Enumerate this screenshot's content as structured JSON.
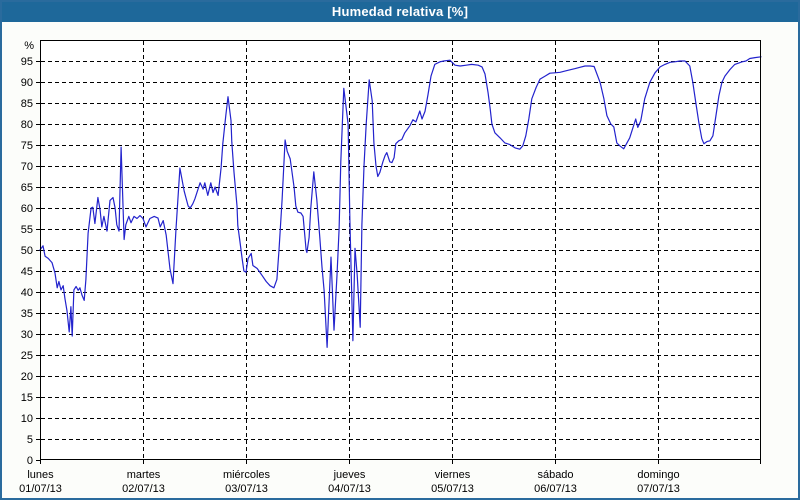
{
  "window": {
    "title": "Humedad relativa [%]"
  },
  "colors": {
    "title_bg": "#1e689a",
    "title_text": "#ffffff",
    "frame_border": "#2a6b9d",
    "page_bg": "#fcfdfa",
    "plot_bg": "#ffffff",
    "grid": "#000000",
    "axis": "#000000",
    "axis_text": "#000000",
    "line": "#2323cd"
  },
  "chart_data": {
    "type": "line",
    "title": "Humedad relativa [%]",
    "unit_label": "%",
    "ylabel": "",
    "xlabel": "",
    "ylim": [
      0,
      100
    ],
    "x_hours_range": [
      0,
      168
    ],
    "grid": "dashed",
    "legend": "none",
    "y_ticks": [
      0,
      5,
      10,
      15,
      20,
      25,
      30,
      35,
      40,
      45,
      50,
      55,
      60,
      65,
      70,
      75,
      80,
      85,
      90,
      95
    ],
    "x_days": [
      {
        "name": "lunes",
        "date": "01/07/13"
      },
      {
        "name": "martes",
        "date": "02/07/13"
      },
      {
        "name": "miércoles",
        "date": "03/07/13"
      },
      {
        "name": "jueves",
        "date": "04/07/13"
      },
      {
        "name": "viernes",
        "date": "05/07/13"
      },
      {
        "name": "sábado",
        "date": "06/07/13"
      },
      {
        "name": "domingo",
        "date": "07/07/13"
      }
    ],
    "series": [
      {
        "name": "Humedad relativa",
        "points": [
          [
            0,
            50
          ],
          [
            0.7,
            51
          ],
          [
            1.2,
            48.5
          ],
          [
            1.9,
            48
          ],
          [
            2.8,
            47
          ],
          [
            3.5,
            44.5
          ],
          [
            4,
            41
          ],
          [
            4.4,
            42.5
          ],
          [
            4.9,
            40.5
          ],
          [
            5.4,
            41.5
          ],
          [
            5.8,
            38.5
          ],
          [
            6.3,
            35.5
          ],
          [
            6.8,
            30.5
          ],
          [
            7.2,
            36.5
          ],
          [
            7.5,
            29.5
          ],
          [
            7.9,
            40.5
          ],
          [
            8.4,
            41.3
          ],
          [
            8.9,
            40.4
          ],
          [
            9.3,
            41
          ],
          [
            9.8,
            39.2
          ],
          [
            10.3,
            38
          ],
          [
            10.7,
            43
          ],
          [
            11.2,
            54
          ],
          [
            11.9,
            60
          ],
          [
            12.3,
            60.2
          ],
          [
            12.8,
            56.3
          ],
          [
            13.5,
            62.5
          ],
          [
            14,
            59.5
          ],
          [
            14.4,
            55.5
          ],
          [
            14.9,
            58
          ],
          [
            15.6,
            54.5
          ],
          [
            16.3,
            61.8
          ],
          [
            17,
            62.5
          ],
          [
            17.5,
            60
          ],
          [
            17.9,
            56
          ],
          [
            18.4,
            54.5
          ],
          [
            18.9,
            74.5
          ],
          [
            19.6,
            52.5
          ],
          [
            20,
            56
          ],
          [
            20.7,
            58
          ],
          [
            21.2,
            56.5
          ],
          [
            21.9,
            58
          ],
          [
            22.6,
            57.5
          ],
          [
            23.3,
            58.2
          ],
          [
            24,
            57.5
          ],
          [
            24.7,
            55.5
          ],
          [
            25.6,
            57.5
          ],
          [
            26.6,
            58
          ],
          [
            27.5,
            57.6
          ],
          [
            28,
            55.5
          ],
          [
            28.7,
            57
          ],
          [
            29.4,
            53.5
          ],
          [
            30.3,
            45.5
          ],
          [
            31,
            42
          ],
          [
            31.7,
            55
          ],
          [
            32.6,
            69.5
          ],
          [
            33.6,
            64
          ],
          [
            34.5,
            60.5
          ],
          [
            35,
            60
          ],
          [
            35.6,
            61
          ],
          [
            36.1,
            62.2
          ],
          [
            37.3,
            66
          ],
          [
            38,
            64.5
          ],
          [
            38.4,
            66
          ],
          [
            39.1,
            63
          ],
          [
            39.8,
            66
          ],
          [
            40.3,
            63.7
          ],
          [
            40.8,
            65
          ],
          [
            41.5,
            63
          ],
          [
            42.2,
            69.6
          ],
          [
            42.6,
            75.3
          ],
          [
            43.3,
            82
          ],
          [
            43.8,
            86.5
          ],
          [
            44.5,
            80.8
          ],
          [
            44.7,
            75.7
          ],
          [
            45.2,
            68.5
          ],
          [
            45.9,
            60.5
          ],
          [
            46.1,
            55.8
          ],
          [
            46.6,
            51.9
          ],
          [
            47.1,
            48
          ],
          [
            47.5,
            45
          ],
          [
            48,
            44.7
          ],
          [
            48.5,
            48
          ],
          [
            49.2,
            49.2
          ],
          [
            49.6,
            46.3
          ],
          [
            50.6,
            45.6
          ],
          [
            51.7,
            44
          ],
          [
            52.7,
            42.5
          ],
          [
            53.6,
            41.5
          ],
          [
            54.5,
            41
          ],
          [
            55.2,
            43
          ],
          [
            55.7,
            50
          ],
          [
            56.4,
            62
          ],
          [
            57.1,
            76.2
          ],
          [
            57.6,
            73.5
          ],
          [
            58.3,
            71.7
          ],
          [
            59.2,
            64.9
          ],
          [
            59.6,
            60.5
          ],
          [
            60.1,
            59
          ],
          [
            60.8,
            58.8
          ],
          [
            61.3,
            58
          ],
          [
            62,
            50
          ],
          [
            62.2,
            49.4
          ],
          [
            62.7,
            53
          ],
          [
            63.1,
            60
          ],
          [
            63.8,
            68.6
          ],
          [
            64.5,
            62
          ],
          [
            65.2,
            53
          ],
          [
            65.7,
            45.9
          ],
          [
            66.2,
            40.4
          ],
          [
            66.9,
            26.8
          ],
          [
            67.8,
            48.3
          ],
          [
            68.5,
            30.9
          ],
          [
            69.2,
            44
          ],
          [
            69.7,
            55
          ],
          [
            70.1,
            71
          ],
          [
            70.8,
            88.5
          ],
          [
            71.8,
            80
          ],
          [
            72.2,
            56.9
          ],
          [
            72.9,
            28.4
          ],
          [
            73.4,
            50.4
          ],
          [
            73.9,
            44
          ],
          [
            74.6,
            31.6
          ],
          [
            75,
            56
          ],
          [
            75.5,
            70
          ],
          [
            76,
            80
          ],
          [
            76.7,
            90.5
          ],
          [
            77.4,
            85.5
          ],
          [
            77.8,
            75.5
          ],
          [
            78.3,
            70
          ],
          [
            78.7,
            67.5
          ],
          [
            79.2,
            68.5
          ],
          [
            79.9,
            71
          ],
          [
            80.4,
            72.5
          ],
          [
            80.8,
            73.2
          ],
          [
            81.5,
            71
          ],
          [
            82,
            70.8
          ],
          [
            82.5,
            72
          ],
          [
            82.9,
            75.3
          ],
          [
            83.6,
            76
          ],
          [
            84.3,
            76.3
          ],
          [
            85,
            77.9
          ],
          [
            86.2,
            79.6
          ],
          [
            86.9,
            81
          ],
          [
            87.6,
            80.5
          ],
          [
            88.5,
            83.1
          ],
          [
            89,
            81.2
          ],
          [
            89.7,
            83
          ],
          [
            90.4,
            87
          ],
          [
            91.1,
            91.4
          ],
          [
            92,
            94.2
          ],
          [
            93.2,
            94.8
          ],
          [
            94.1,
            95
          ],
          [
            95.5,
            95.2
          ],
          [
            96.7,
            94
          ],
          [
            97.9,
            93.8
          ],
          [
            99.3,
            94
          ],
          [
            100.6,
            94.2
          ],
          [
            102.1,
            94
          ],
          [
            103,
            93.6
          ],
          [
            103.7,
            91.9
          ],
          [
            104.4,
            87.4
          ],
          [
            104.9,
            83.6
          ],
          [
            105.3,
            80
          ],
          [
            106,
            77.9
          ],
          [
            107.2,
            76.7
          ],
          [
            108.3,
            75.5
          ],
          [
            109.5,
            75.1
          ],
          [
            110.7,
            74.3
          ],
          [
            111.8,
            74
          ],
          [
            112.5,
            74.8
          ],
          [
            113.2,
            77.2
          ],
          [
            113.9,
            81.2
          ],
          [
            114.6,
            86
          ],
          [
            115.6,
            88.7
          ],
          [
            116.5,
            90.7
          ],
          [
            117.7,
            91.4
          ],
          [
            118.8,
            92.1
          ],
          [
            120,
            92.2
          ],
          [
            121.2,
            92.3
          ],
          [
            122.3,
            92.6
          ],
          [
            123.5,
            92.9
          ],
          [
            124.7,
            93.2
          ],
          [
            125.8,
            93.5
          ],
          [
            127,
            93.8
          ],
          [
            128.2,
            93.8
          ],
          [
            129.1,
            93.7
          ],
          [
            130.5,
            89.9
          ],
          [
            131.4,
            86
          ],
          [
            132.1,
            82
          ],
          [
            133,
            80
          ],
          [
            133.7,
            79.3
          ],
          [
            134.4,
            75.5
          ],
          [
            135.1,
            74.8
          ],
          [
            136,
            74.1
          ],
          [
            137.4,
            76.7
          ],
          [
            138.8,
            81.2
          ],
          [
            139.3,
            79.2
          ],
          [
            140,
            80.8
          ],
          [
            140.9,
            86
          ],
          [
            142.1,
            89.9
          ],
          [
            143.3,
            92.2
          ],
          [
            144,
            93
          ],
          [
            144.5,
            93.6
          ],
          [
            145.6,
            94.2
          ],
          [
            146.8,
            94.7
          ],
          [
            147.9,
            94.8
          ],
          [
            149.1,
            95
          ],
          [
            150.3,
            95
          ],
          [
            151.4,
            93.8
          ],
          [
            152.1,
            89.9
          ],
          [
            152.8,
            85.1
          ],
          [
            153.5,
            80.4
          ],
          [
            154.2,
            76.5
          ],
          [
            154.7,
            75.3
          ],
          [
            155.4,
            75.8
          ],
          [
            156.1,
            76
          ],
          [
            156.8,
            77.2
          ],
          [
            157.5,
            81.9
          ],
          [
            158.2,
            86.7
          ],
          [
            158.9,
            89.9
          ],
          [
            159.6,
            91.4
          ],
          [
            160.8,
            93
          ],
          [
            161.9,
            94.2
          ],
          [
            163.6,
            94.8
          ],
          [
            164.5,
            95
          ],
          [
            165.4,
            95.6
          ],
          [
            166.6,
            95.8
          ],
          [
            168,
            96
          ]
        ]
      }
    ]
  }
}
